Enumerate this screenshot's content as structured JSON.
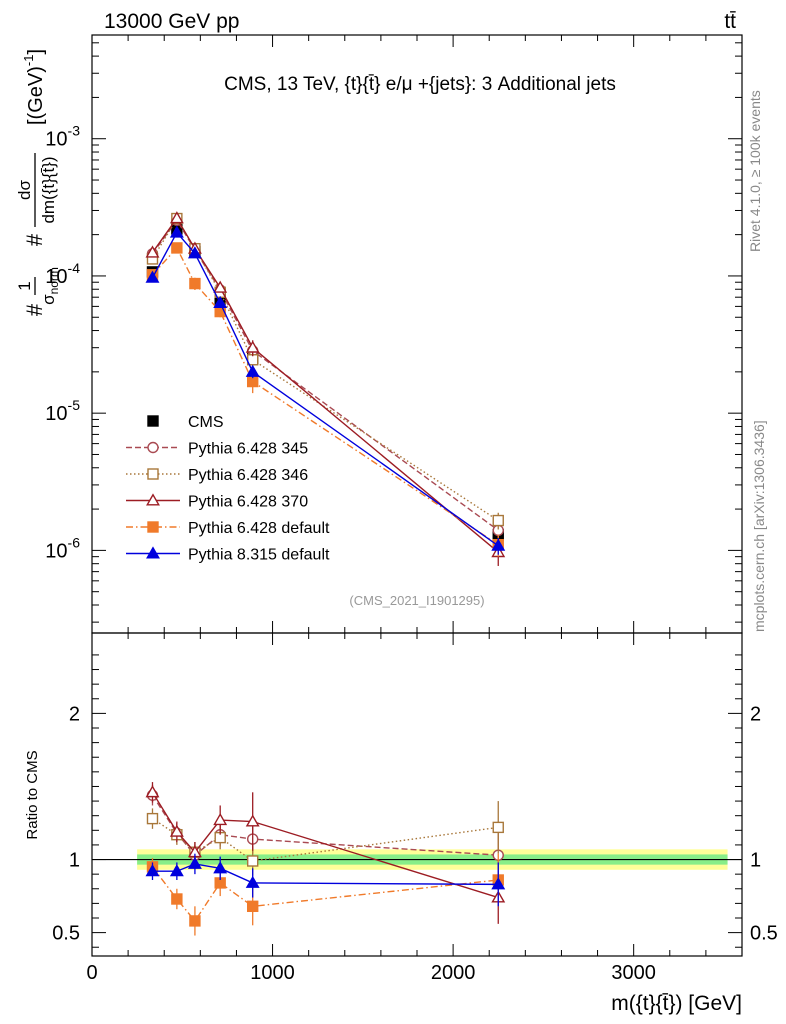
{
  "header": {
    "left": "13000 GeV pp",
    "right": "tt̄"
  },
  "side": {
    "rivet": "Rivet 4.1.0, ≥ 100k events",
    "mcplots": "mcplots.cern.ch [arXiv:1306.3436]"
  },
  "chart_data": [
    {
      "type": "line",
      "title": "CMS, 13 TeV, {t}{t̄} e/μ +{jets}: 3 Additional jets",
      "watermark": "(CMS_2021_I1901295)",
      "xlabel": "m({t}{t̄}) [GeV]",
      "ylabel": "#1/σnorm #dσ/dm({t}{t̄}) [(GeV)^-1]",
      "yscale": "log",
      "xlim": [
        0,
        3600
      ],
      "ylim": [
        2.5e-07,
        0.0057
      ],
      "yticks": [
        1e-06,
        1e-05,
        0.0001,
        0.001
      ],
      "ytick_labels": [
        "10^-6",
        "10^-5",
        "10^-4",
        "10^-3"
      ],
      "x": [
        335,
        470,
        570,
        710,
        890,
        2250
      ],
      "legend_position": "lower-left",
      "series": [
        {
          "name": "CMS",
          "color": "#000000",
          "marker": "square-filled",
          "dash": "none",
          "values": [
            0.000107,
            0.00022,
            0.00015,
            6.8e-05,
            2.5e-05,
            1.3e-06
          ],
          "err": [
            5e-06,
            1e-05,
            8e-06,
            4e-06,
            2e-06,
            1.3e-07
          ]
        },
        {
          "name": "Pythia 6.428 345",
          "color": "#a94a52",
          "marker": "circle-open",
          "dash": "dash",
          "values": [
            0.000145,
            0.000255,
            0.000155,
            7.9e-05,
            2.85e-05,
            1.4e-06
          ],
          "err": [
            1e-05,
            1.8e-05,
            1.1e-05,
            6e-06,
            3e-06,
            2.3e-07
          ]
        },
        {
          "name": "Pythia 6.428 346",
          "color": "#a8773a",
          "marker": "square-open",
          "dash": "dot",
          "values": [
            0.000133,
            0.000262,
            0.000158,
            7.6e-05,
            2.45e-05,
            1.65e-06
          ],
          "err": [
            1e-05,
            1.8e-05,
            1.1e-05,
            6e-06,
            3e-06,
            2.3e-07
          ]
        },
        {
          "name": "Pythia 6.428 370",
          "color": "#9c1c23",
          "marker": "triangle-open",
          "dash": "solid",
          "values": [
            0.000148,
            0.000263,
            0.000158,
            8.2e-05,
            3e-05,
            9.7e-07
          ],
          "err": [
            1e-05,
            1.8e-05,
            1.1e-05,
            6e-06,
            4e-06,
            2e-07
          ]
        },
        {
          "name": "Pythia 6.428 default",
          "color": "#f07a2a",
          "marker": "square-filled",
          "dash": "dashdot",
          "values": [
            0.000102,
            0.00016,
            8.8e-05,
            5.5e-05,
            1.7e-05,
            1.1e-06
          ],
          "err": [
            8e-06,
            1.3e-05,
            9e-06,
            5e-06,
            3e-06,
            2e-07
          ]
        },
        {
          "name": "Pythia 8.315 default",
          "color": "#0000dd",
          "marker": "triangle-filled",
          "dash": "solid",
          "values": [
            9.7e-05,
            0.000207,
            0.000146,
            6.35e-05,
            2e-05,
            1.08e-06
          ],
          "err": [
            6e-06,
            1.2e-05,
            9e-06,
            5e-06,
            2e-06,
            1.5e-07
          ]
        }
      ]
    },
    {
      "type": "line",
      "ylabel": "Ratio to CMS",
      "xlabel": "m({t}{t̄}) [GeV]",
      "xlim": [
        0,
        3600
      ],
      "ylim": [
        0.34,
        2.55
      ],
      "yticks": [
        0.5,
        1,
        2
      ],
      "ytick_labels": [
        "0.5",
        "1",
        "2"
      ],
      "xticks": [
        0,
        1000,
        2000,
        3000
      ],
      "xtick_labels": [
        "0",
        "1000",
        "2000",
        "3000"
      ],
      "x": [
        335,
        470,
        570,
        710,
        890,
        2250
      ],
      "band_range": [
        250,
        3520
      ],
      "band_yellow": [
        0.93,
        1.07
      ],
      "band_green": [
        0.965,
        1.035
      ],
      "series": [
        {
          "name": "Pythia 6.428 345",
          "values": [
            1.44,
            1.18,
            1.03,
            1.17,
            1.14,
            1.03
          ],
          "err": [
            0.07,
            0.07,
            0.07,
            0.08,
            0.1,
            0.15
          ]
        },
        {
          "name": "Pythia 6.428 346",
          "values": [
            1.28,
            1.17,
            1.05,
            1.15,
            0.99,
            1.22
          ],
          "err": [
            0.07,
            0.07,
            0.07,
            0.08,
            0.1,
            0.18
          ]
        },
        {
          "name": "Pythia 6.428 370",
          "values": [
            1.46,
            1.19,
            1.05,
            1.27,
            1.26,
            0.74
          ],
          "err": [
            0.07,
            0.07,
            0.07,
            0.1,
            0.2,
            0.18
          ]
        },
        {
          "name": "Pythia 6.428 default",
          "values": [
            0.95,
            0.73,
            0.58,
            0.84,
            0.68,
            0.86
          ],
          "err": [
            0.06,
            0.07,
            0.1,
            0.09,
            0.13,
            0.18
          ]
        },
        {
          "name": "Pythia 8.315 default",
          "values": [
            0.92,
            0.92,
            0.97,
            0.94,
            0.84,
            0.83
          ],
          "err": [
            0.06,
            0.06,
            0.07,
            0.08,
            0.1,
            0.15
          ]
        }
      ]
    }
  ]
}
